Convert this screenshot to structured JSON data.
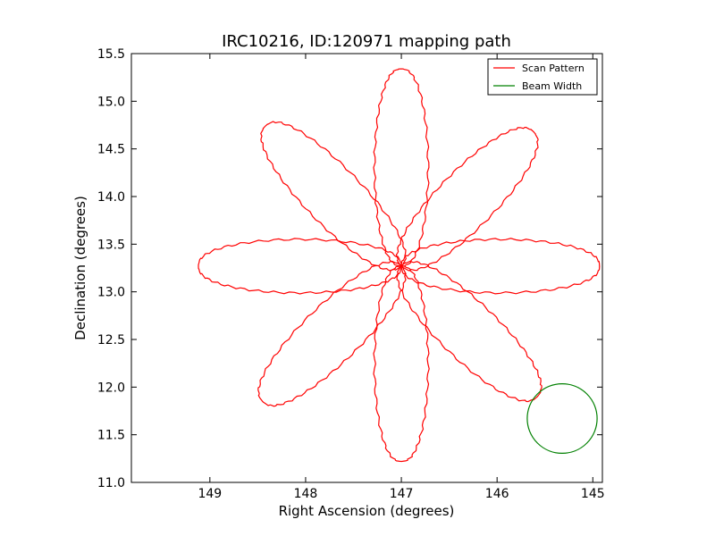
{
  "chart_data": {
    "type": "line",
    "title": "IRC10216, ID:120971 mapping path",
    "xlabel": "Right Ascension (degrees)",
    "ylabel": "Declination (degrees)",
    "xlim": [
      149.82,
      144.9
    ],
    "ylim": [
      11.0,
      15.5
    ],
    "x_inverted": true,
    "xticks": [
      "149",
      "148",
      "147",
      "146",
      "145"
    ],
    "xtick_values": [
      149,
      148,
      147,
      146,
      145
    ],
    "yticks": [
      "11.0",
      "11.5",
      "12.0",
      "12.5",
      "13.0",
      "13.5",
      "14.0",
      "14.5",
      "15.0",
      "15.5"
    ],
    "ytick_values": [
      11.0,
      11.5,
      12.0,
      12.5,
      13.0,
      13.5,
      14.0,
      14.5,
      15.0,
      15.5
    ],
    "grid": false,
    "legend_position": "top-right",
    "series": [
      {
        "name": "Scan Pattern",
        "color": "#ff0000",
        "shape": "8-petal rose scan",
        "center": [
          147.0,
          13.27
        ],
        "petal_tips": [
          {
            "direction": "N",
            "x": 147.0,
            "y": 15.34
          },
          {
            "direction": "NE",
            "x": 145.62,
            "y": 14.68
          },
          {
            "direction": "E",
            "x": 144.93,
            "y": 13.27
          },
          {
            "direction": "SE",
            "x": 145.58,
            "y": 11.9
          },
          {
            "direction": "S",
            "x": 147.0,
            "y": 11.22
          },
          {
            "direction": "SW",
            "x": 148.45,
            "y": 11.85
          },
          {
            "direction": "W",
            "x": 149.12,
            "y": 13.27
          },
          {
            "direction": "NW",
            "x": 148.42,
            "y": 14.74
          }
        ]
      },
      {
        "name": "Beam Width",
        "color": "#008000",
        "shape": "circle",
        "center": [
          145.32,
          11.67
        ],
        "radius": 0.365
      }
    ]
  }
}
